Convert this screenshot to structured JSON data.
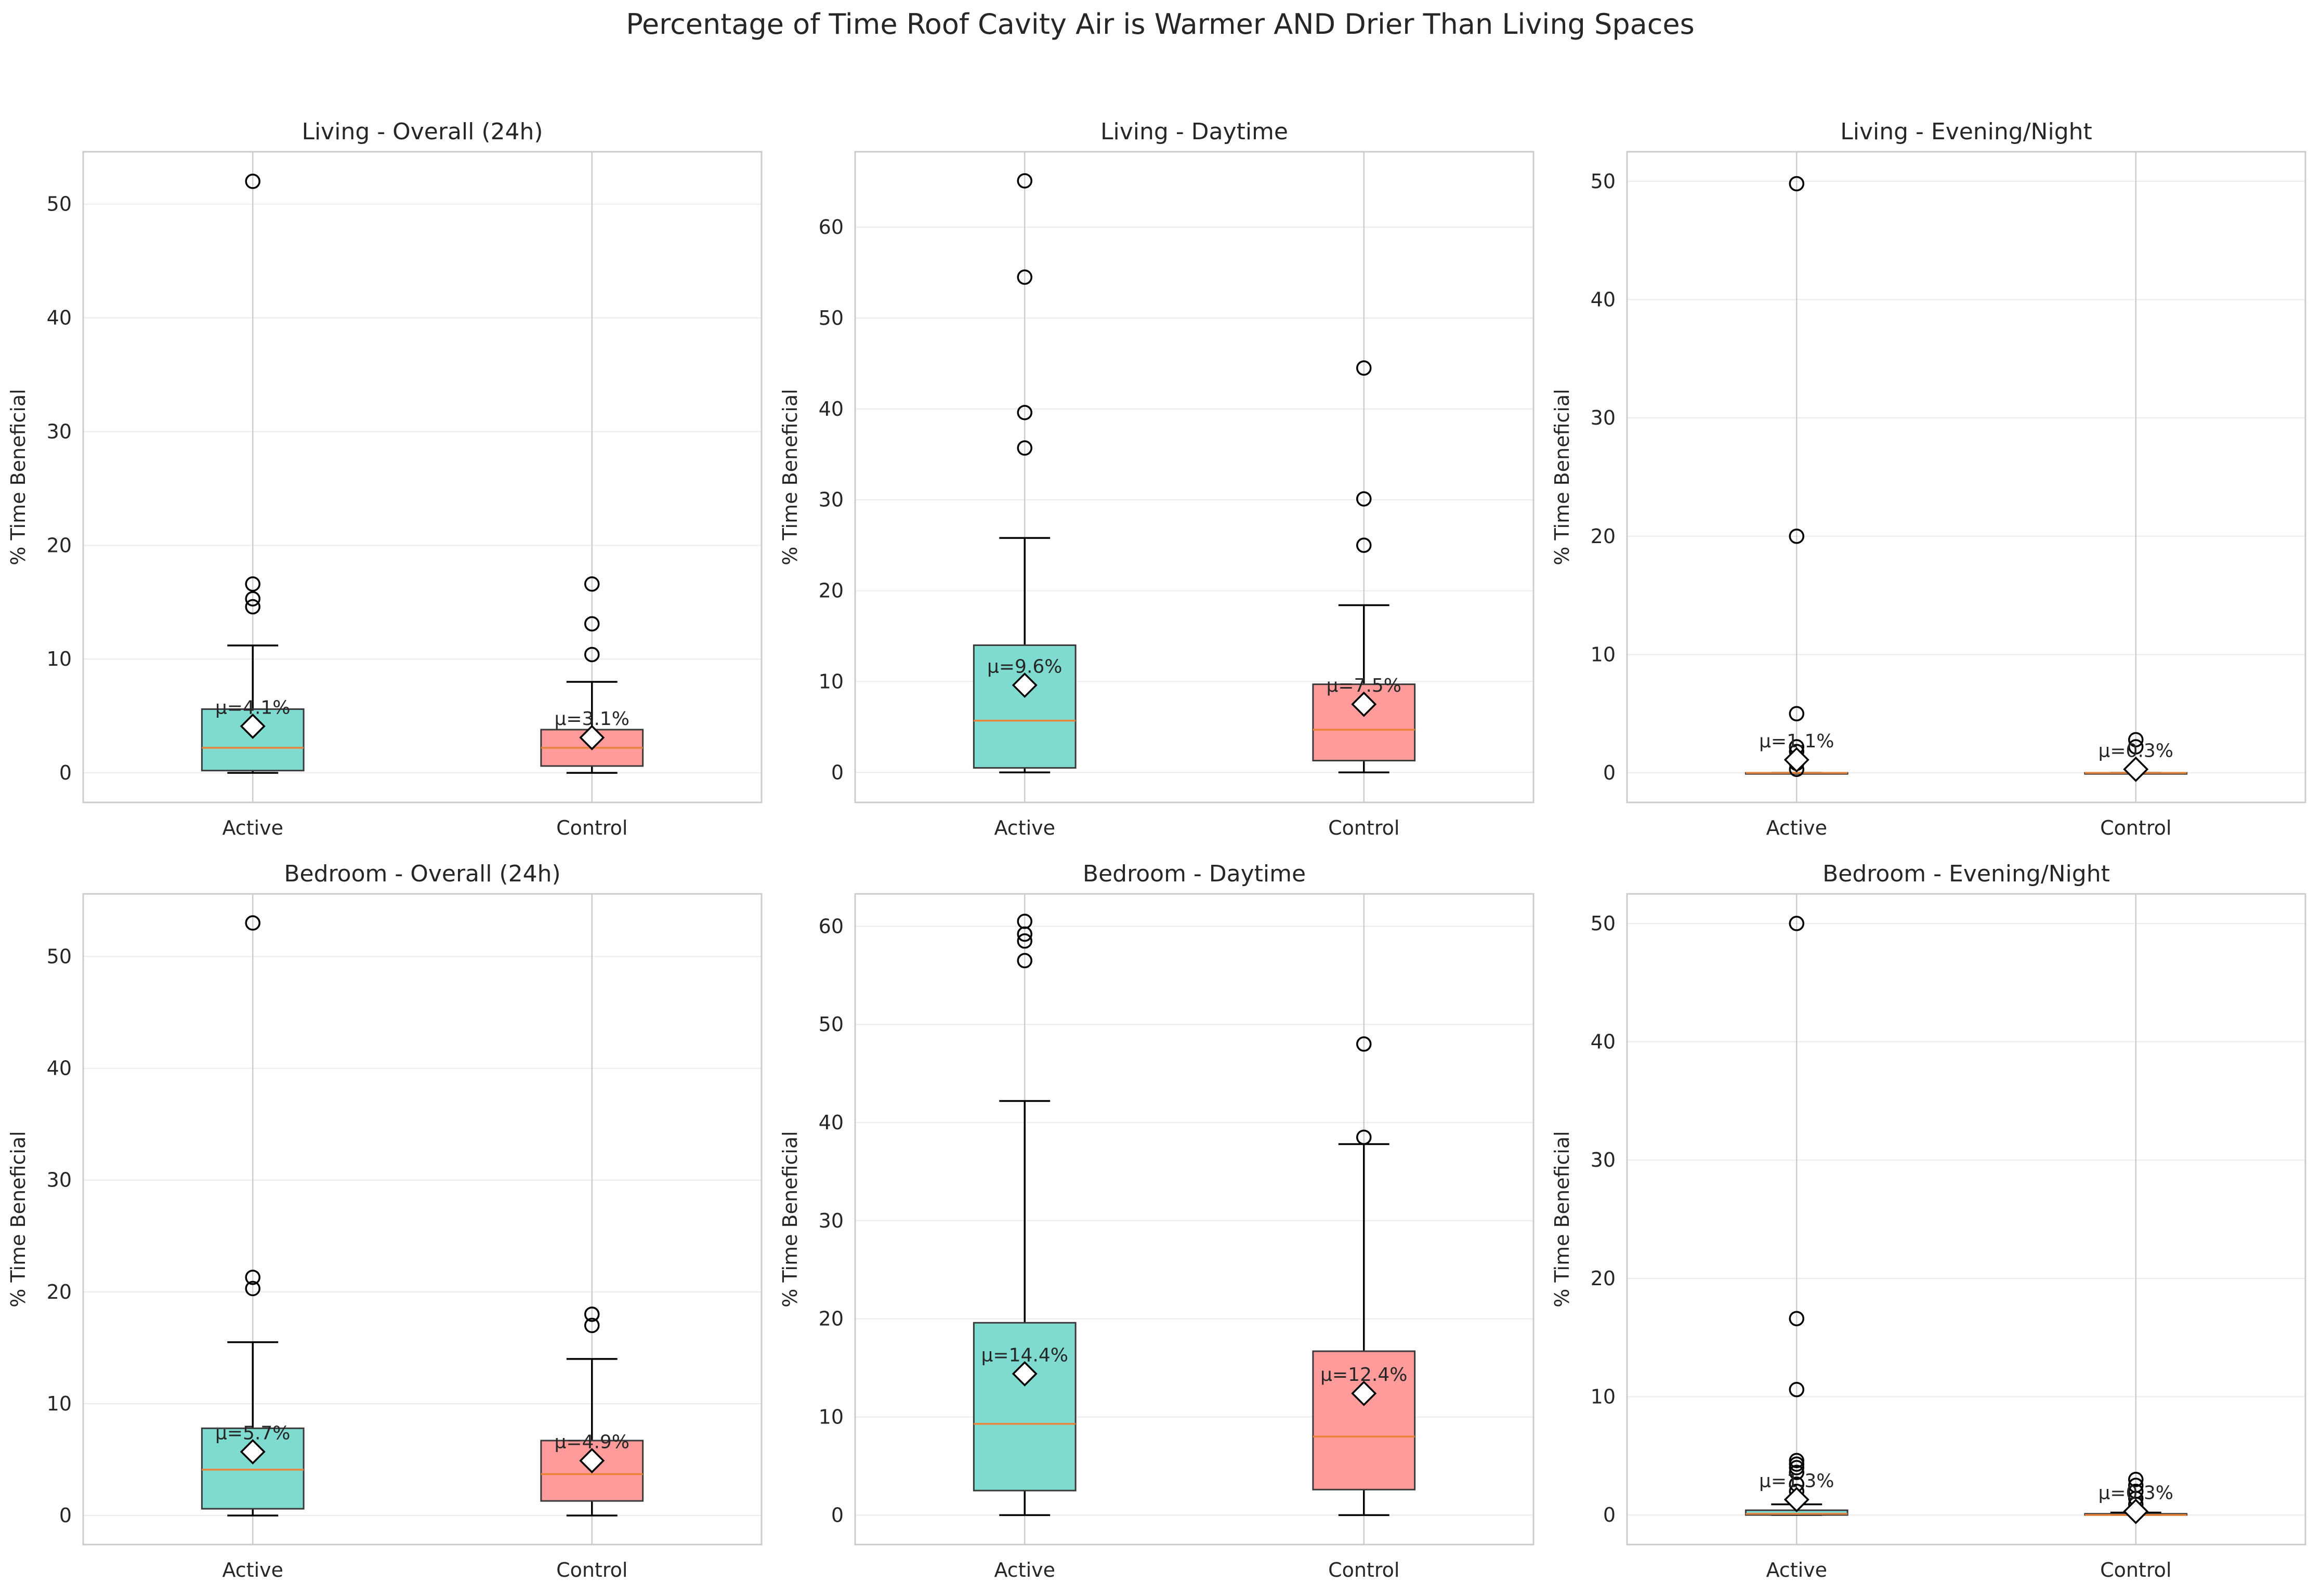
{
  "figure_title": "Percentage of Time Roof Cavity Air is Warmer AND Drier Than Living Spaces",
  "colors": {
    "active_box": "#7fdbd0",
    "control_box": "#ff9b9b",
    "median": "#e8833a",
    "grid": "#ebebeb",
    "spine": "#cccccc",
    "text": "#262626"
  },
  "chart_data": [
    {
      "type": "boxplot",
      "title": "Living - Overall (24h)",
      "ylabel": "% Time Beneficial",
      "ylim": [
        -2.6,
        54.6
      ],
      "yticks": [
        0,
        10,
        20,
        30,
        40,
        50
      ],
      "grid": true,
      "categories": [
        "Active",
        "Control"
      ],
      "series": [
        {
          "category": "Active",
          "whisker_low": 0,
          "q1": 0.2,
          "median": 2.2,
          "q3": 5.6,
          "whisker_high": 11.2,
          "mean": 4.1,
          "mean_label": "μ=4.1%",
          "outliers": [
            14.6,
            15.3,
            16.6,
            52.0
          ]
        },
        {
          "category": "Control",
          "whisker_low": 0,
          "q1": 0.6,
          "median": 2.2,
          "q3": 3.8,
          "whisker_high": 8.0,
          "mean": 3.1,
          "mean_label": "μ=3.1%",
          "outliers": [
            10.4,
            13.1,
            16.6
          ]
        }
      ]
    },
    {
      "type": "boxplot",
      "title": "Living - Daytime",
      "ylabel": "% Time Beneficial",
      "ylim": [
        -3.3,
        68.3
      ],
      "yticks": [
        0,
        10,
        20,
        30,
        40,
        50,
        60
      ],
      "grid": true,
      "categories": [
        "Active",
        "Control"
      ],
      "series": [
        {
          "category": "Active",
          "whisker_low": 0,
          "q1": 0.5,
          "median": 5.7,
          "q3": 14.0,
          "whisker_high": 25.8,
          "mean": 9.6,
          "mean_label": "μ=9.6%",
          "outliers": [
            35.7,
            39.6,
            54.5,
            65.1
          ]
        },
        {
          "category": "Control",
          "whisker_low": 0,
          "q1": 1.3,
          "median": 4.7,
          "q3": 9.7,
          "whisker_high": 18.4,
          "mean": 7.5,
          "mean_label": "μ=7.5%",
          "outliers": [
            25.0,
            30.1,
            44.5
          ]
        }
      ]
    },
    {
      "type": "boxplot",
      "title": "Living - Evening/Night",
      "ylabel": "% Time Beneficial",
      "ylim": [
        -2.5,
        52.5
      ],
      "yticks": [
        0,
        10,
        20,
        30,
        40,
        50
      ],
      "grid": true,
      "categories": [
        "Active",
        "Control"
      ],
      "series": [
        {
          "category": "Active",
          "whisker_low": 0,
          "q1": 0,
          "median": 0,
          "q3": 0,
          "whisker_high": 0,
          "mean": 1.1,
          "mean_label": "μ=1.1%",
          "outliers": [
            0.3,
            0.8,
            1.3,
            1.8,
            2.2,
            5.0,
            20.0,
            49.8
          ]
        },
        {
          "category": "Control",
          "whisker_low": 0,
          "q1": 0,
          "median": 0,
          "q3": 0,
          "whisker_high": 0,
          "mean": 0.3,
          "mean_label": "μ=0.3%",
          "outliers": [
            2.2,
            2.8
          ]
        }
      ]
    },
    {
      "type": "boxplot",
      "title": "Bedroom - Overall (24h)",
      "ylabel": "% Time Beneficial",
      "ylim": [
        -2.6,
        55.6
      ],
      "yticks": [
        0,
        10,
        20,
        30,
        40,
        50
      ],
      "grid": true,
      "categories": [
        "Active",
        "Control"
      ],
      "series": [
        {
          "category": "Active",
          "whisker_low": 0,
          "q1": 0.6,
          "median": 4.1,
          "q3": 7.8,
          "whisker_high": 15.5,
          "mean": 5.7,
          "mean_label": "μ=5.7%",
          "outliers": [
            20.3,
            21.3,
            53.0
          ]
        },
        {
          "category": "Control",
          "whisker_low": 0,
          "q1": 1.3,
          "median": 3.7,
          "q3": 6.7,
          "whisker_high": 14.0,
          "mean": 4.9,
          "mean_label": "μ=4.9%",
          "outliers": [
            17.0,
            18.0
          ]
        }
      ]
    },
    {
      "type": "boxplot",
      "title": "Bedroom - Daytime",
      "ylabel": "% Time Beneficial",
      "ylim": [
        -3.0,
        63.3
      ],
      "yticks": [
        0,
        10,
        20,
        30,
        40,
        50,
        60
      ],
      "grid": true,
      "categories": [
        "Active",
        "Control"
      ],
      "series": [
        {
          "category": "Active",
          "whisker_low": 0,
          "q1": 2.5,
          "median": 9.3,
          "q3": 19.6,
          "whisker_high": 42.2,
          "mean": 14.4,
          "mean_label": "μ=14.4%",
          "outliers": [
            56.5,
            58.5,
            59.2,
            60.5
          ]
        },
        {
          "category": "Control",
          "whisker_low": 0,
          "q1": 2.6,
          "median": 8.0,
          "q3": 16.7,
          "whisker_high": 37.8,
          "mean": 12.4,
          "mean_label": "μ=12.4%",
          "outliers": [
            38.5,
            48.0
          ]
        }
      ]
    },
    {
      "type": "boxplot",
      "title": "Bedroom - Evening/Night",
      "ylabel": "% Time Beneficial",
      "ylim": [
        -2.5,
        52.5
      ],
      "yticks": [
        0,
        10,
        20,
        30,
        40,
        50
      ],
      "grid": true,
      "categories": [
        "Active",
        "Control"
      ],
      "series": [
        {
          "category": "Active",
          "whisker_low": 0,
          "q1": 0,
          "median": 0.1,
          "q3": 0.4,
          "whisker_high": 0.9,
          "mean": 1.3,
          "mean_label": "μ=1.3%",
          "outliers": [
            2.0,
            2.6,
            3.6,
            4.0,
            4.3,
            4.6,
            10.6,
            16.6,
            50.0
          ]
        },
        {
          "category": "Control",
          "whisker_low": 0,
          "q1": 0,
          "median": 0,
          "q3": 0.1,
          "whisker_high": 0.2,
          "mean": 0.3,
          "mean_label": "μ=0.3%",
          "outliers": [
            0.9,
            1.4,
            2.0,
            2.5,
            3.0
          ]
        }
      ]
    }
  ]
}
